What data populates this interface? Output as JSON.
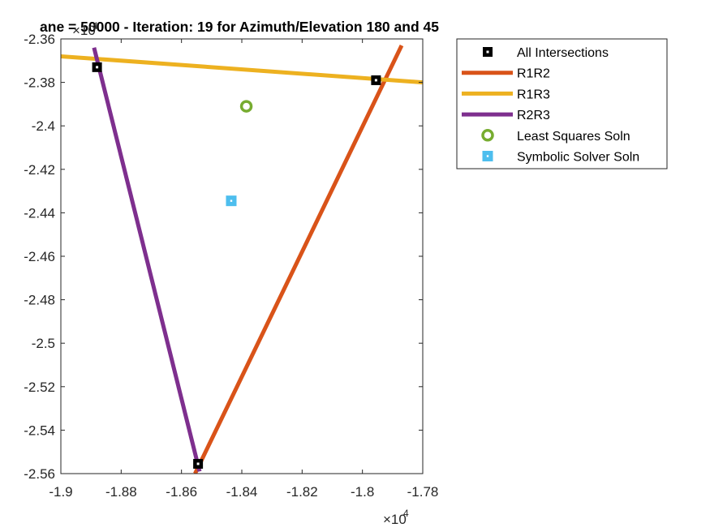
{
  "chart_data": {
    "type": "line",
    "title": "ane = 50000 - Iteration: 19 for Azimuth/Elevation 180 and 45",
    "xlabel": "",
    "ylabel": "",
    "x_multiplier": {
      "base": "×10",
      "exponent": "4"
    },
    "y_multiplier": {
      "base": "×10",
      "exponent": "4"
    },
    "xlim": [
      -19000,
      -17800
    ],
    "ylim": [
      -25600,
      -23600
    ],
    "xticks": [
      -19000,
      -18800,
      -18600,
      -18400,
      -18200,
      -18000,
      -17800
    ],
    "xtick_labels": [
      "-1.9",
      "-1.88",
      "-1.86",
      "-1.84",
      "-1.82",
      "-1.8",
      "-1.78"
    ],
    "yticks": [
      -23600,
      -23800,
      -24000,
      -24200,
      -24400,
      -24600,
      -24800,
      -25000,
      -25200,
      -25400,
      -25600
    ],
    "ytick_labels": [
      "-2.36",
      "-2.38",
      "-2.4",
      "-2.42",
      "-2.44",
      "-2.46",
      "-2.48",
      "-2.5",
      "-2.52",
      "-2.54",
      "-2.56"
    ],
    "grid": false,
    "legend_position": "outside-top-right",
    "series": [
      {
        "name": "All Intersections",
        "kind": "marker",
        "marker": "square",
        "color": "#000000",
        "x": [
          -18880,
          -17955,
          -18545
        ],
        "y": [
          -23730,
          -23790,
          -25555
        ]
      },
      {
        "name": "R1R2",
        "kind": "line",
        "color": "#D95319",
        "x": [
          -18555,
          -17870
        ],
        "y": [
          -25600,
          -23630
        ]
      },
      {
        "name": "R1R3",
        "kind": "line",
        "color": "#EDB120",
        "x": [
          -19000,
          -17800
        ],
        "y": [
          -23680,
          -23800
        ]
      },
      {
        "name": "R2R3",
        "kind": "line",
        "color": "#7E2F8E",
        "x": [
          -18890,
          -18540
        ],
        "y": [
          -23640,
          -25590
        ]
      },
      {
        "name": "Least Squares Soln",
        "kind": "marker",
        "marker": "circle",
        "color": "#77AC30",
        "x": [
          -18385
        ],
        "y": [
          -23910
        ]
      },
      {
        "name": "Symbolic Solver Soln",
        "kind": "marker",
        "marker": "square-filled",
        "color": "#4DBEEE",
        "x": [
          -18435
        ],
        "y": [
          -24345
        ]
      }
    ]
  }
}
